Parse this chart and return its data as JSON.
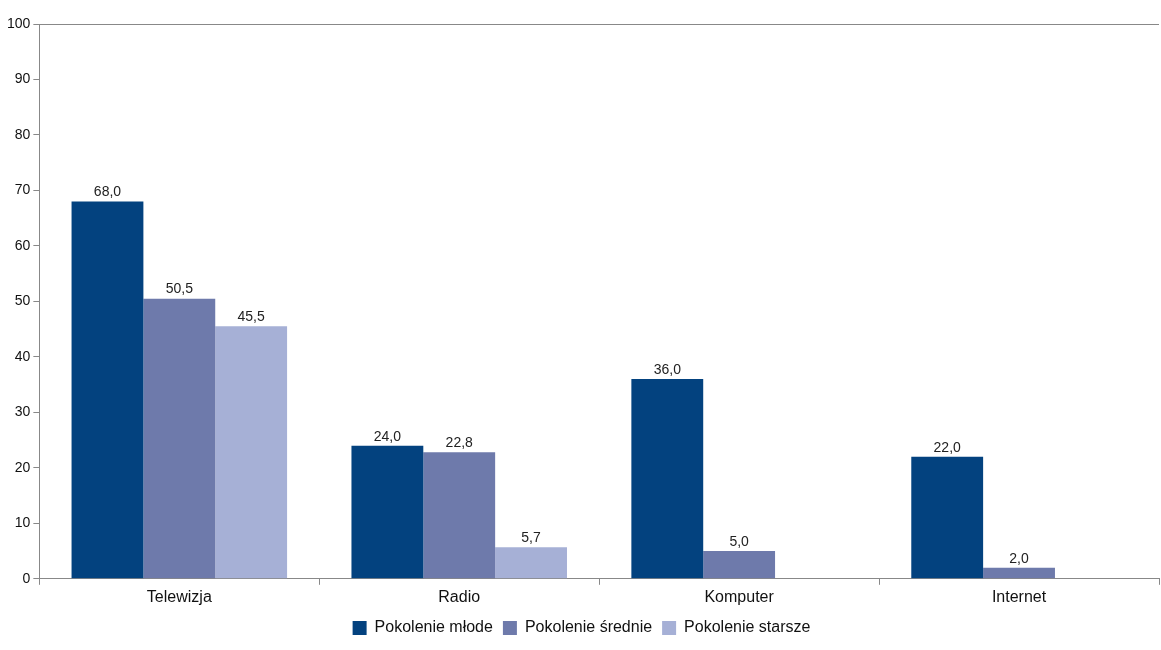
{
  "chart_data": {
    "type": "bar",
    "categories": [
      "Telewizja",
      "Radio",
      "Komputer",
      "Internet"
    ],
    "series": [
      {
        "name": "Pokolenie młode",
        "color": "#03427f",
        "values": [
          68.0,
          24.0,
          36.0,
          22.0
        ],
        "value_labels": [
          "68,0",
          "24,0",
          "36,0",
          "22,0"
        ]
      },
      {
        "name": "Pokolenie średnie",
        "color": "#6e7aab",
        "values": [
          50.5,
          22.8,
          5.0,
          2.0
        ],
        "value_labels": [
          "50,5",
          "22,8",
          "5,0",
          "2,0"
        ]
      },
      {
        "name": "Pokolenie starsze",
        "color": "#a6b0d6",
        "values": [
          45.5,
          5.7,
          null,
          null
        ],
        "value_labels": [
          "45,5",
          "5,7",
          null,
          null
        ]
      }
    ],
    "ylim": [
      0,
      100
    ],
    "yticks": [
      0,
      10,
      20,
      30,
      40,
      50,
      60,
      70,
      80,
      90,
      100
    ],
    "legend": "bottom"
  }
}
